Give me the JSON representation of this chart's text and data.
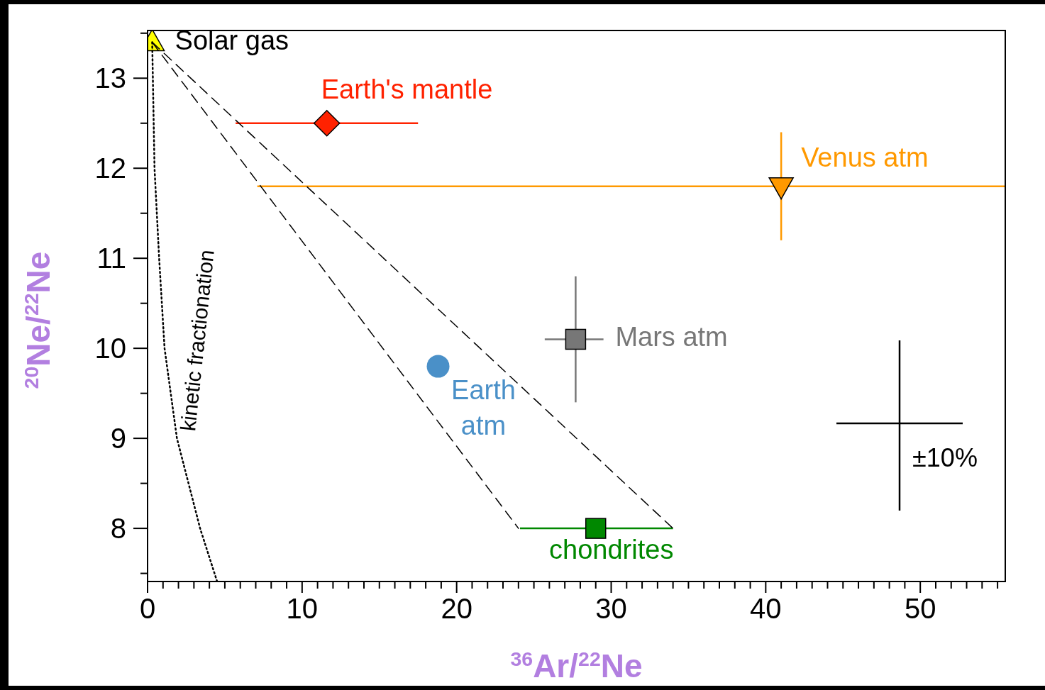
{
  "chart_data": {
    "type": "scatter",
    "xlabel": "$^{36}$Ar/$^{22}$Ne",
    "ylabel": "$^{20}$Ne/$^{22}$Ne",
    "xlim": [
      0,
      55.5
    ],
    "ylim": [
      7.41,
      13.53
    ],
    "xticks": [
      0,
      {
        "value": 1,
        "label": null
      },
      {
        "value": 2,
        "label": null
      },
      {
        "value": 3,
        "label": null
      },
      {
        "value": 4,
        "label": null
      },
      {
        "value": 5,
        "label": null
      },
      {
        "value": 6,
        "label": null
      },
      {
        "value": 7,
        "label": null
      },
      {
        "value": 8,
        "label": null
      },
      {
        "value": 9,
        "label": null
      },
      10,
      {
        "value": 11,
        "label": null
      },
      {
        "value": 12,
        "label": null
      },
      {
        "value": 13,
        "label": null
      },
      {
        "value": 14,
        "label": null
      },
      {
        "value": 15,
        "label": null
      },
      {
        "value": 16,
        "label": null
      },
      {
        "value": 17,
        "label": null
      },
      {
        "value": 18,
        "label": null
      },
      {
        "value": 19,
        "label": null
      },
      20,
      {
        "value": 21,
        "label": null
      },
      {
        "value": 22,
        "label": null
      },
      {
        "value": 23,
        "label": null
      },
      {
        "value": 24,
        "label": null
      },
      {
        "value": 25,
        "label": null
      },
      {
        "value": 26,
        "label": null
      },
      {
        "value": 27,
        "label": null
      },
      {
        "value": 28,
        "label": null
      },
      {
        "value": 29,
        "label": null
      },
      30,
      {
        "value": 31,
        "label": null
      },
      {
        "value": 32,
        "label": null
      },
      {
        "value": 33,
        "label": null
      },
      {
        "value": 34,
        "label": null
      },
      {
        "value": 35,
        "label": null
      },
      {
        "value": 36,
        "label": null
      },
      {
        "value": 37,
        "label": null
      },
      {
        "value": 38,
        "label": null
      },
      {
        "value": 39,
        "label": null
      },
      40,
      {
        "value": 41,
        "label": null
      },
      {
        "value": 42,
        "label": null
      },
      {
        "value": 43,
        "label": null
      },
      {
        "value": 44,
        "label": null
      },
      {
        "value": 45,
        "label": null
      },
      {
        "value": 46,
        "label": null
      },
      {
        "value": 47,
        "label": null
      },
      {
        "value": 48,
        "label": null
      },
      {
        "value": 49,
        "label": null
      },
      50,
      {
        "value": 51,
        "label": null
      },
      {
        "value": 52,
        "label": null
      },
      {
        "value": 53,
        "label": null
      },
      {
        "value": 54,
        "label": null
      },
      {
        "value": 55,
        "label": null
      }
    ],
    "yticks": [
      {
        "value": 7.5,
        "label": null
      },
      8,
      {
        "value": 8.5,
        "label": null
      },
      9,
      {
        "value": 9.5,
        "label": null
      },
      10,
      {
        "value": 10.5,
        "label": null
      },
      11,
      {
        "value": 11.5,
        "label": null
      },
      12,
      {
        "value": 12.5,
        "label": null
      },
      13,
      {
        "value": 13.5,
        "label": null
      }
    ],
    "grid": false,
    "series": [
      {
        "name": "Solar gas",
        "type": "scatter",
        "color": "#ffff00",
        "marker": "triangle",
        "x": [
          0.3
        ],
        "values": [
          13.4
        ]
      },
      {
        "name": "Earth's mantle",
        "type": "scatter",
        "color": "#ff2200",
        "marker": "diamond",
        "x": [
          11.6
        ],
        "values": [
          12.5
        ],
        "xerrors": [
          [
            5.7,
            17.5
          ]
        ]
      },
      {
        "name": "Venus atm",
        "type": "scatter",
        "color": "#ff9900",
        "marker": "triangle-down",
        "x": [
          41.0
        ],
        "values": [
          11.8
        ],
        "xerrors": [
          [
            7.1,
            55.5
          ]
        ],
        "errors": [
          [
            11.2,
            12.4
          ]
        ]
      },
      {
        "name": "Mars atm",
        "type": "scatter",
        "color": "#777777",
        "marker": "square",
        "x": [
          27.7
        ],
        "values": [
          10.1
        ],
        "xerrors": [
          [
            25.7,
            29.5
          ]
        ],
        "errors": [
          [
            9.4,
            10.8
          ]
        ]
      },
      {
        "name": "Earth atm",
        "type": "scatter",
        "color": "#4a90c8",
        "marker": "circle",
        "x": [
          18.8
        ],
        "values": [
          9.8
        ]
      },
      {
        "name": "chondrites",
        "type": "scatter",
        "color": "#008800",
        "marker": "square",
        "x": [
          29.0
        ],
        "values": [
          8.0
        ],
        "xerrors": [
          [
            24.1,
            34.0
          ]
        ]
      },
      {
        "type": "line",
        "color": "#000000",
        "marker": "none",
        "line_style": "dashed",
        "x": [
          0.3,
          24.0
        ],
        "values": [
          13.4,
          8.0
        ]
      },
      {
        "type": "line",
        "color": "#000000",
        "marker": "none",
        "line_style": "dashed",
        "x": [
          0.3,
          34.0
        ],
        "values": [
          13.4,
          8.0
        ]
      },
      {
        "type": "line",
        "color": "#000000",
        "marker": "none",
        "line_style": "dotted",
        "x": [
          0.3,
          0.45,
          0.75,
          1.1,
          1.9,
          3.4,
          4.5
        ],
        "values": [
          13.4,
          12,
          11,
          10,
          9,
          8,
          7.41
        ]
      }
    ],
    "annotations": [
      "kinetic fractionation",
      "±10%"
    ]
  }
}
